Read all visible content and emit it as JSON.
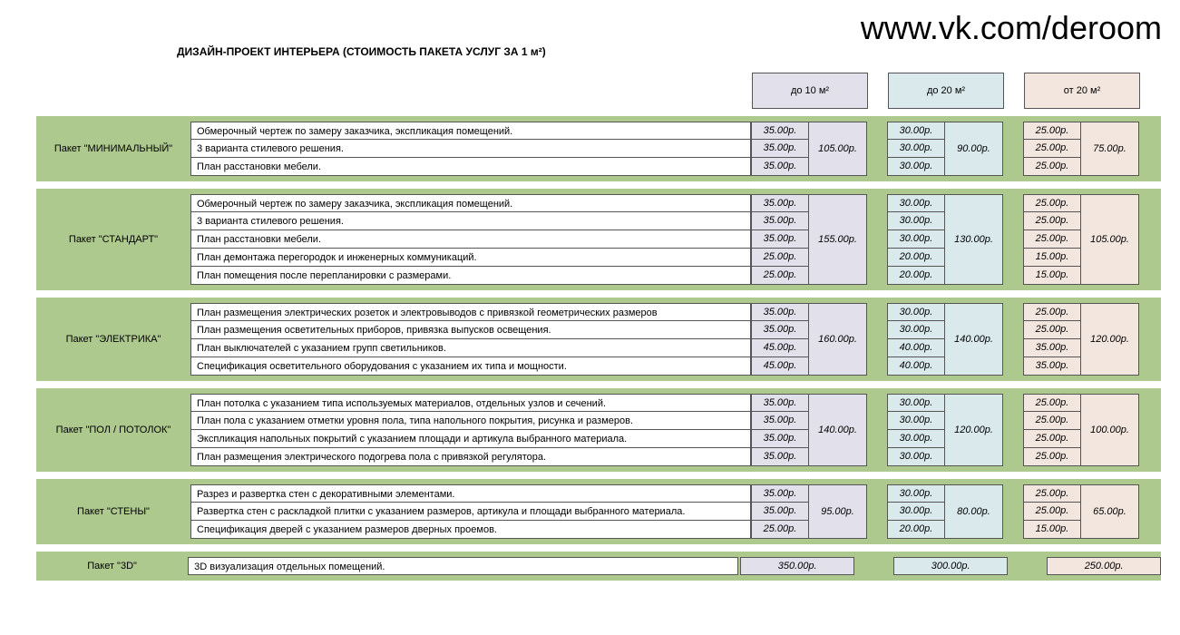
{
  "url": "www.vk.com/deroom",
  "title": "ДИЗАЙН-ПРОЕКТ ИНТЕРЬЕРА (СТОИМОСТЬ ПАКЕТА УСЛУГ ЗА 1 м²)",
  "tiers": {
    "a": "до 10 м²",
    "b": "до 20 м²",
    "c": "от 20 м²"
  },
  "colors": {
    "package_bg": "#aec98e",
    "tier_a_bg": "#e2e0ea",
    "tier_b_bg": "#d9e9ec",
    "tier_c_bg": "#f2e6de",
    "border": "#555555",
    "white": "#ffffff"
  },
  "packages": [
    {
      "name": "Пакет \"МИНИМАЛЬНЫЙ\"",
      "items": [
        "Обмерочный чертеж по замеру заказчика, экспликация помещений.",
        "3 варианта стилевого решения.",
        "План расстановки мебели."
      ],
      "prices_a": [
        "35.00р.",
        "35.00р.",
        "35.00р."
      ],
      "total_a": "105.00р.",
      "prices_b": [
        "30.00р.",
        "30.00р.",
        "30.00р."
      ],
      "total_b": "90.00р.",
      "prices_c": [
        "25.00р.",
        "25.00р.",
        "25.00р."
      ],
      "total_c": "75.00р."
    },
    {
      "name": "Пакет \"СТАНДАРТ\"",
      "items": [
        "Обмерочный чертеж по замеру заказчика, экспликация помещений.",
        "3 варианта стилевого решения.",
        "План расстановки мебели.",
        "План демонтажа перегородок и инженерных коммуникаций.",
        "План помещения после перепланировки с размерами."
      ],
      "prices_a": [
        "35.00р.",
        "35.00р.",
        "35.00р.",
        "25.00р.",
        "25.00р."
      ],
      "total_a": "155.00р.",
      "prices_b": [
        "30.00р.",
        "30.00р.",
        "30.00р.",
        "20.00р.",
        "20.00р."
      ],
      "total_b": "130.00р.",
      "prices_c": [
        "25.00р.",
        "25.00р.",
        "25.00р.",
        "15.00р.",
        "15.00р."
      ],
      "total_c": "105.00р."
    },
    {
      "name": "Пакет \"ЭЛЕКТРИКА\"",
      "items": [
        "План размещения электрических розеток и электровыводов с привязкой геометрических размеров",
        "План размещения осветительных приборов, привязка выпусков освещения.",
        "План выключателей с указанием групп светильников.",
        "Спецификация осветительного оборудования с указанием их типа и мощности."
      ],
      "prices_a": [
        "35.00р.",
        "35.00р.",
        "45.00р.",
        "45.00р."
      ],
      "total_a": "160.00р.",
      "prices_b": [
        "30.00р.",
        "30.00р.",
        "40.00р.",
        "40.00р."
      ],
      "total_b": "140.00р.",
      "prices_c": [
        "25.00р.",
        "25.00р.",
        "35.00р.",
        "35.00р."
      ],
      "total_c": "120.00р."
    },
    {
      "name": "Пакет \"ПОЛ / ПОТОЛОК\"",
      "items": [
        "План потолка с указанием типа используемых материалов, отдельных узлов и сечений.",
        "План пола с указанием отметки уровня пола, типа напольного покрытия, рисунка и размеров.",
        "Экспликация напольных покрытий с указанием площади и артикула выбранного материала.",
        "План размещения электрического подогрева пола с привязкой регулятора."
      ],
      "prices_a": [
        "35.00р.",
        "35.00р.",
        "35.00р.",
        "35.00р."
      ],
      "total_a": "140.00р.",
      "prices_b": [
        "30.00р.",
        "30.00р.",
        "30.00р.",
        "30.00р."
      ],
      "total_b": "120.00р.",
      "prices_c": [
        "25.00р.",
        "25.00р.",
        "25.00р.",
        "25.00р."
      ],
      "total_c": "100.00р."
    },
    {
      "name": "Пакет \"СТЕНЫ\"",
      "items": [
        "Разрез и развертка стен с декоративными элементами.",
        "Развертка стен с раскладкой плитки с указанием размеров, артикула и площади выбранного материала.",
        "Спецификация дверей с указанием размеров дверных проемов."
      ],
      "prices_a": [
        "35.00р.",
        "35.00р.",
        "25.00р."
      ],
      "total_a": "95.00р.",
      "prices_b": [
        "30.00р.",
        "30.00р.",
        "20.00р."
      ],
      "total_b": "80.00р.",
      "prices_c": [
        "25.00р.",
        "25.00р.",
        "15.00р."
      ],
      "total_c": "65.00р."
    },
    {
      "name": "Пакет \"3D\"",
      "single": true,
      "items": [
        "3D визуализация отдельных помещений."
      ],
      "total_a": "350.00р.",
      "total_b": "300.00р.",
      "total_c": "250.00р."
    }
  ]
}
